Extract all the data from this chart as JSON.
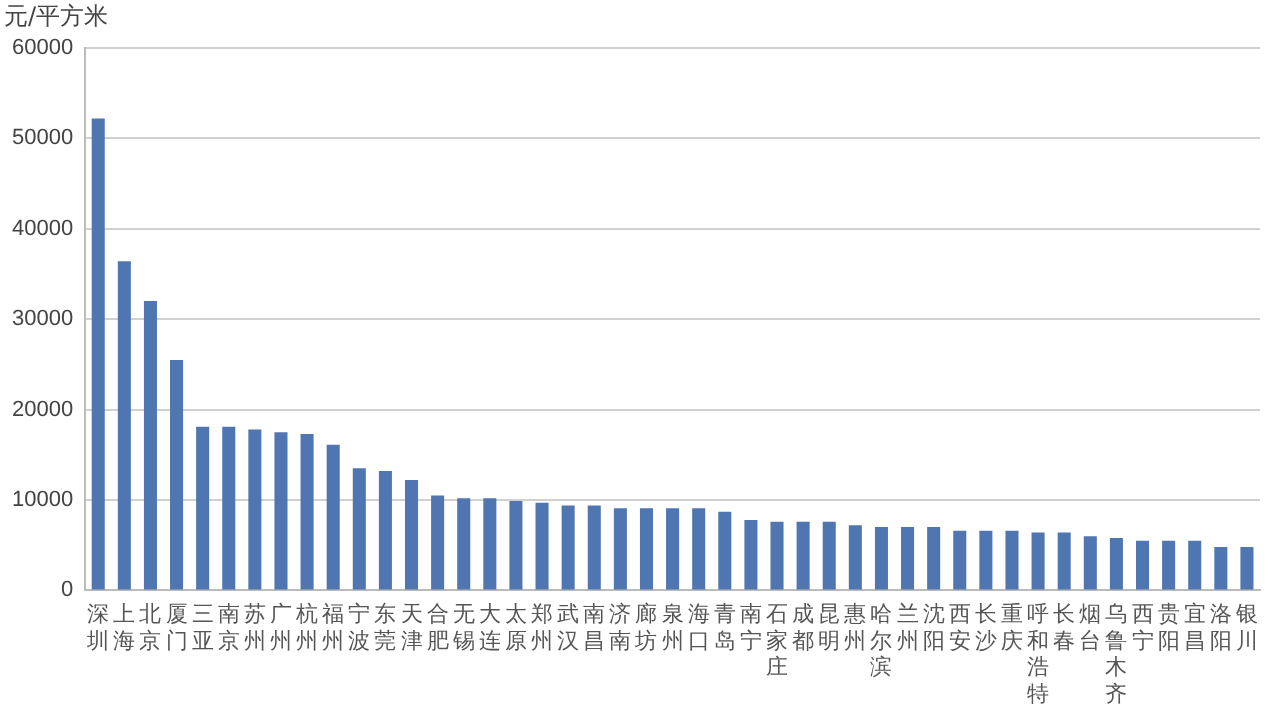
{
  "chart_data": {
    "type": "bar",
    "ylabel": "元/平方米",
    "categories": [
      "深圳",
      "上海",
      "北京",
      "厦门",
      "三亚",
      "南京",
      "苏州",
      "广州",
      "杭州",
      "福州",
      "宁波",
      "东莞",
      "天津",
      "合肥",
      "无锡",
      "大连",
      "太原",
      "郑州",
      "武汉",
      "南昌",
      "济南",
      "廊坊",
      "泉州",
      "海口",
      "青岛",
      "南宁",
      "石家庄",
      "成都",
      "昆明",
      "惠州",
      "哈尔滨",
      "兰州",
      "沈阳",
      "西安",
      "长沙",
      "重庆",
      "呼和浩特",
      "长春",
      "烟台",
      "乌鲁木齐",
      "西宁",
      "贵阳",
      "宜昌",
      "洛阳",
      "银川"
    ],
    "values": [
      52200,
      36400,
      32000,
      25500,
      18100,
      18100,
      17800,
      17500,
      17300,
      16100,
      13500,
      13200,
      12200,
      10500,
      10200,
      10200,
      9900,
      9700,
      9400,
      9400,
      9100,
      9100,
      9100,
      9100,
      8700,
      7800,
      7600,
      7600,
      7600,
      7200,
      7000,
      7000,
      7000,
      6600,
      6600,
      6600,
      6400,
      6400,
      6000,
      5800,
      5500,
      5500,
      5500,
      4800,
      4800
    ],
    "color": "#4f76b0",
    "ylim": [
      0,
      60000
    ],
    "yticks": [
      0,
      10000,
      20000,
      30000,
      40000,
      50000,
      60000
    ],
    "grid": "y",
    "legend": false
  }
}
